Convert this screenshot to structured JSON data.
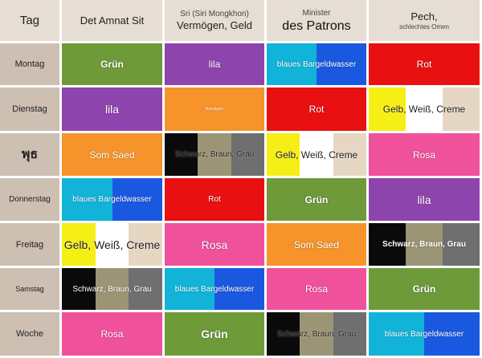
{
  "colors": {
    "green": "#6e9a3a",
    "purple": "#8e44ad",
    "orange": "#f6932a",
    "red": "#e81010",
    "pink": "#f0519b",
    "cyan": "#11b3d8",
    "blue": "#1a58e0",
    "yellow": "#f5ef16",
    "white": "#ffffff",
    "cream": "#e6d7c3",
    "black": "#0a0a0a",
    "brown": "#9b9575",
    "gray": "#6f6f6f"
  },
  "header": {
    "tag": "Tag",
    "col1_top": "",
    "col1_bottom": "Det Amnat Sit",
    "col2_top": "Sri (Siri Mongkhon)",
    "col2_bottom": "Vermögen, Geld",
    "col3_top": "Minister",
    "col3_bottom": "des Patrons",
    "col4_top": "Pech,",
    "col4_bottom": "schlechtes Omen"
  },
  "rows": {
    "montag": "Montag",
    "dienstag": "Dienstag",
    "wed": "พุธ",
    "donnerstag": "Donnerstag",
    "freitag": "Freitag",
    "samstag": "Samstag",
    "woche": "Woche"
  },
  "cells": {
    "gruen": "Grün",
    "lila": "lila",
    "rot": "Rot",
    "rosa": "Rosa",
    "som_saed": "Som Saed",
    "blaues": "blaues Bargeldwasser",
    "gelb": "Gelb, Weiß, Creme",
    "schwarz": "Schwarz, Braun, Grau",
    "tiny": "lilarotgrün"
  }
}
